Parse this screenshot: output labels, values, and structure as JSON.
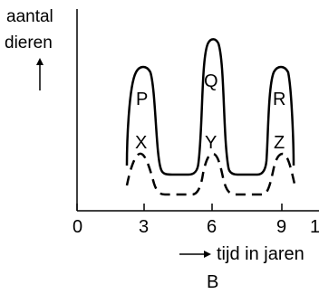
{
  "figure": {
    "y_label_line1": "aantal",
    "y_label_line2": "dieren",
    "x_label": "tijd in jaren",
    "caption": "B"
  },
  "ticks": [
    "0",
    "3",
    "6",
    "9"
  ],
  "curve_labels": {
    "solid": [
      "P",
      "Q",
      "R"
    ],
    "dashed": [
      "X",
      "Y",
      "Z"
    ]
  }
}
